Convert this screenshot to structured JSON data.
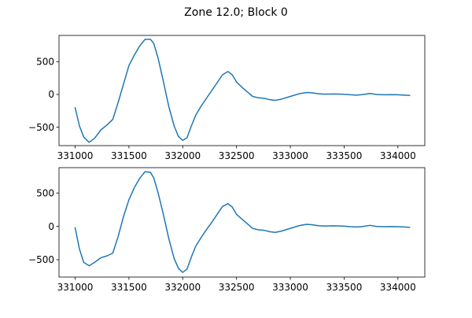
{
  "title": "Zone 12.0; Block 0",
  "chart_data": [
    {
      "type": "line",
      "title": "",
      "xlabel": "",
      "ylabel": "",
      "grid": false,
      "xlim": [
        330850,
        334250
      ],
      "ylim": [
        -780,
        900
      ],
      "xticks": [
        331000,
        331500,
        332000,
        332500,
        333000,
        333500,
        334000
      ],
      "yticks": [
        -500,
        0,
        500
      ],
      "color": "#1f77b4",
      "series": [
        {
          "x": [
            331000,
            331040,
            331080,
            331130,
            331180,
            331240,
            331300,
            331350,
            331400,
            331450,
            331500,
            331550,
            331600,
            331650,
            331700,
            331730,
            331770,
            331820,
            331870,
            331920,
            331960,
            332000,
            332040,
            332080,
            332120,
            332170,
            332220,
            332270,
            332320,
            332370,
            332420,
            332460,
            332500,
            332550,
            332600,
            332650,
            332700,
            332760,
            332810,
            332860,
            332920,
            333000,
            333080,
            333150,
            333200,
            333260,
            333320,
            333400,
            333480,
            333560,
            333620,
            333680,
            333740,
            333800,
            333860,
            333940,
            334000,
            334060,
            334110
          ],
          "y": [
            -200,
            -480,
            -650,
            -730,
            -670,
            -540,
            -460,
            -380,
            -120,
            160,
            440,
            600,
            740,
            840,
            840,
            780,
            560,
            200,
            -180,
            -480,
            -640,
            -700,
            -660,
            -480,
            -320,
            -180,
            -60,
            60,
            180,
            300,
            350,
            300,
            190,
            110,
            40,
            -30,
            -50,
            -60,
            -80,
            -90,
            -70,
            -30,
            10,
            30,
            25,
            10,
            5,
            8,
            5,
            -5,
            -10,
            0,
            15,
            0,
            -5,
            -3,
            -5,
            -10,
            -15
          ]
        }
      ]
    },
    {
      "type": "line",
      "title": "",
      "xlabel": "",
      "ylabel": "",
      "grid": false,
      "xlim": [
        330850,
        334250
      ],
      "ylim": [
        -760,
        880
      ],
      "xticks": [
        331000,
        331500,
        332000,
        332500,
        333000,
        333500,
        334000
      ],
      "yticks": [
        -500,
        0,
        500
      ],
      "color": "#1f77b4",
      "series": [
        {
          "x": [
            331000,
            331040,
            331080,
            331130,
            331180,
            331240,
            331300,
            331350,
            331400,
            331450,
            331500,
            331550,
            331600,
            331650,
            331700,
            331730,
            331770,
            331820,
            331870,
            331920,
            331960,
            332000,
            332040,
            332080,
            332120,
            332170,
            332220,
            332270,
            332320,
            332370,
            332420,
            332460,
            332500,
            332550,
            332600,
            332650,
            332700,
            332760,
            332810,
            332860,
            332920,
            333000,
            333080,
            333150,
            333200,
            333260,
            333320,
            333400,
            333480,
            333560,
            333620,
            333680,
            333740,
            333800,
            333860,
            333940,
            334000,
            334060,
            334110
          ],
          "y": [
            -20,
            -340,
            -540,
            -590,
            -540,
            -470,
            -440,
            -400,
            -150,
            150,
            400,
            580,
            720,
            820,
            810,
            730,
            510,
            180,
            -180,
            -480,
            -630,
            -690,
            -640,
            -460,
            -300,
            -170,
            -50,
            60,
            180,
            300,
            340,
            290,
            180,
            110,
            40,
            -30,
            -50,
            -60,
            -80,
            -90,
            -70,
            -30,
            10,
            30,
            25,
            10,
            5,
            8,
            5,
            -5,
            -10,
            0,
            15,
            0,
            -5,
            -3,
            -5,
            -10,
            -15
          ]
        }
      ]
    }
  ]
}
